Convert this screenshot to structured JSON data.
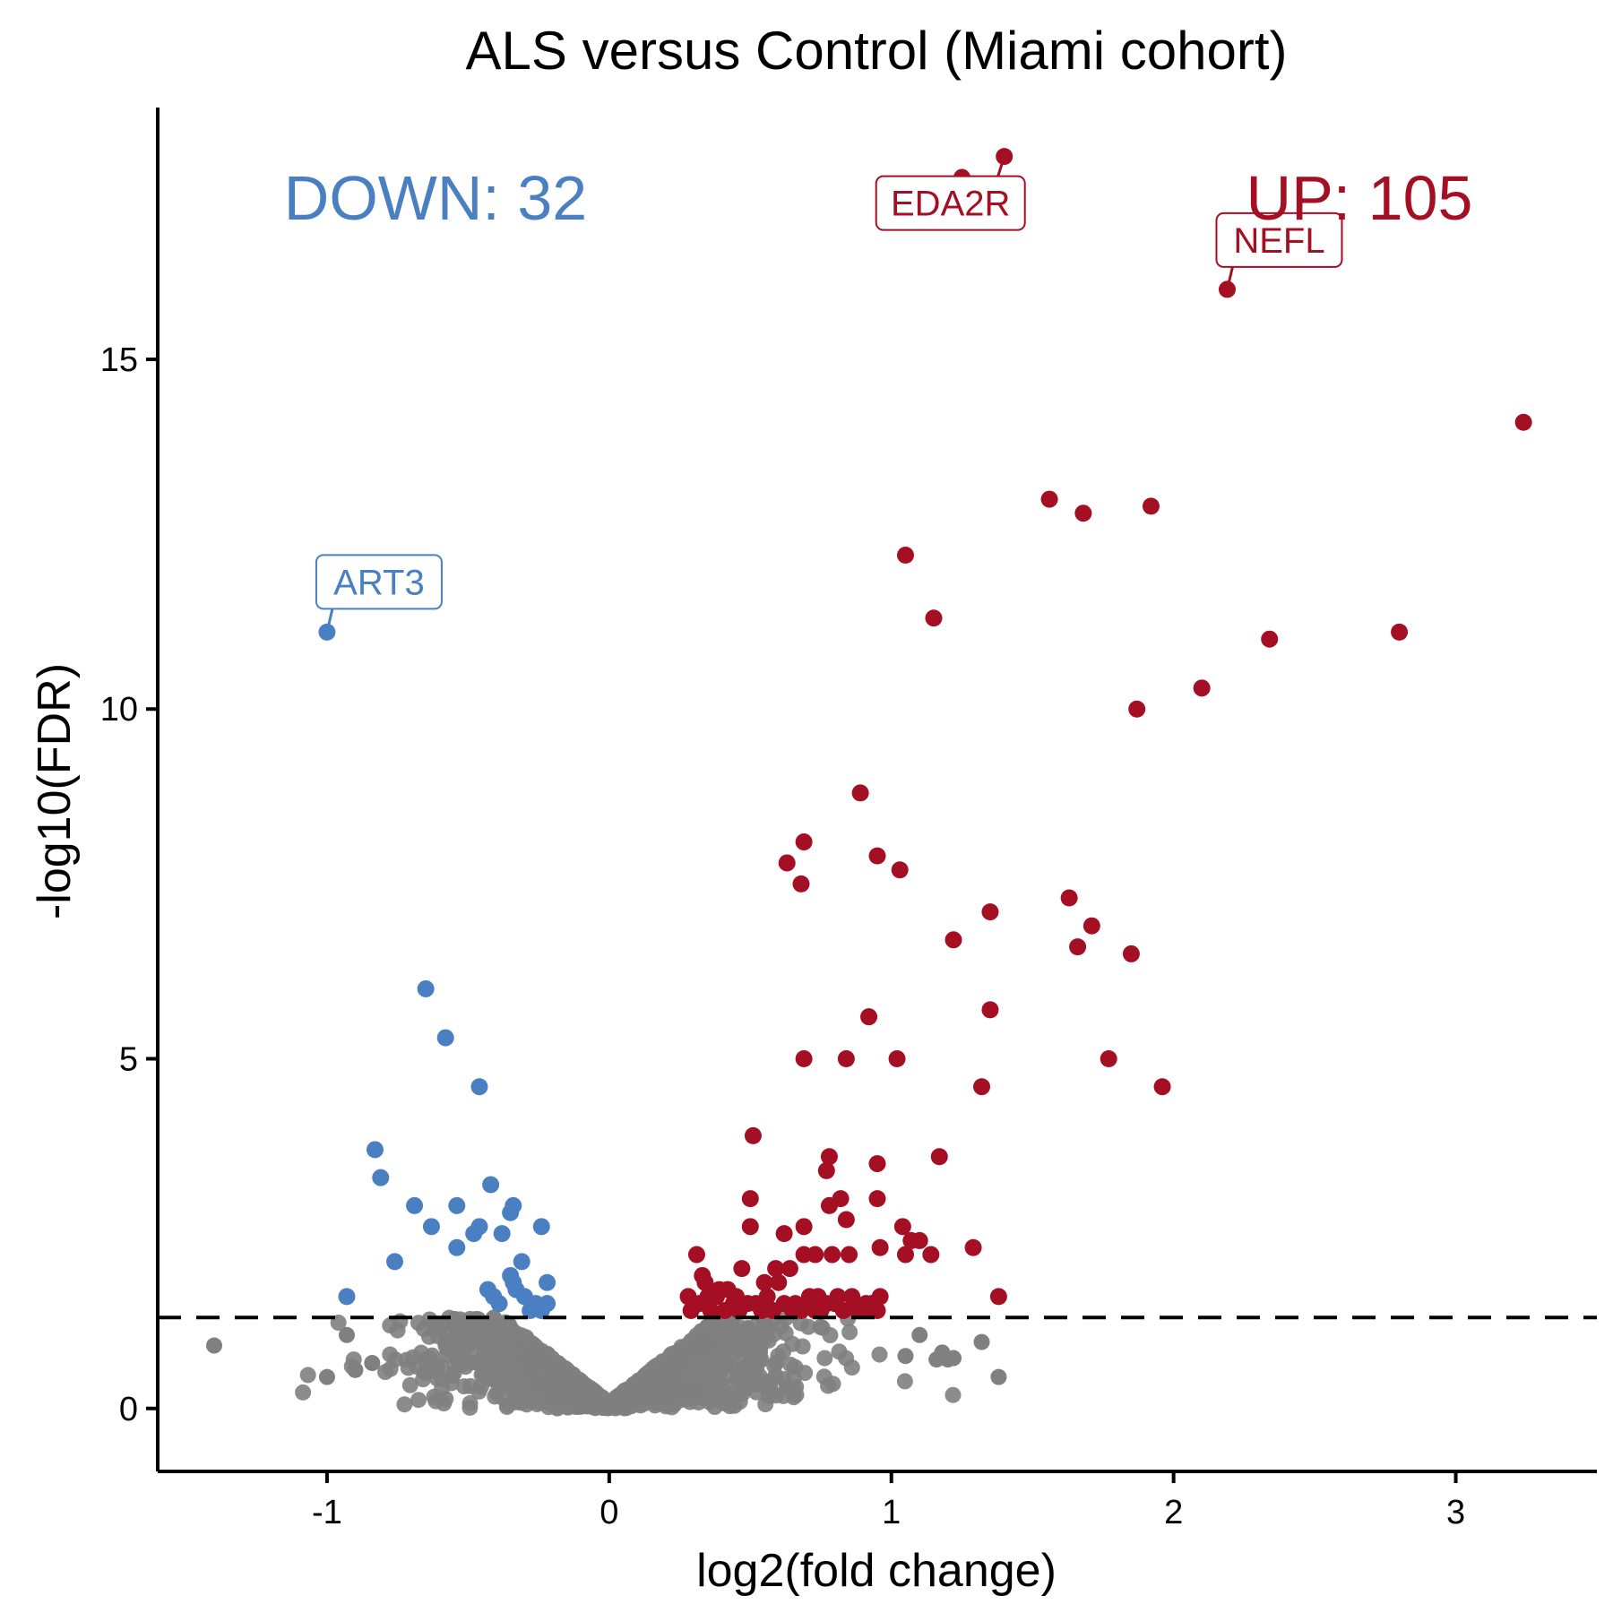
{
  "colors": {
    "up": "#A50F24",
    "down": "#4A80C2",
    "ns": "#808080",
    "axis": "#000000"
  },
  "chart_data": {
    "type": "scatter",
    "title": "ALS versus Control (Miami cohort)",
    "xlabel": "log2(fold change)",
    "ylabel": "-log10(FDR)",
    "xlim": [
      -1.6,
      3.5
    ],
    "ylim": [
      -0.9,
      18.6
    ],
    "x_ticks": [
      -1,
      0,
      1,
      2,
      3
    ],
    "y_ticks": [
      0,
      5,
      10,
      15
    ],
    "threshold_line": {
      "y": 1.3,
      "style": "dashed"
    },
    "counts": {
      "down_label": "DOWN: 32",
      "up_label": "UP: 105"
    },
    "labeled_genes": [
      {
        "gene": "EDA2R",
        "x": 1.4,
        "y": 17.9,
        "group": "up"
      },
      {
        "gene": "NEFL",
        "x": 2.19,
        "y": 16.0,
        "group": "up"
      },
      {
        "gene": "ART3",
        "x": -1.0,
        "y": 11.1,
        "group": "down"
      }
    ],
    "series": [
      {
        "name": "UP",
        "points": [
          [
            1.4,
            17.9
          ],
          [
            1.25,
            17.6
          ],
          [
            2.19,
            16.0
          ],
          [
            3.24,
            14.1
          ],
          [
            1.56,
            13.0
          ],
          [
            1.68,
            12.8
          ],
          [
            1.92,
            12.9
          ],
          [
            1.05,
            12.2
          ],
          [
            1.15,
            11.3
          ],
          [
            2.8,
            11.1
          ],
          [
            2.34,
            11.0
          ],
          [
            2.1,
            10.3
          ],
          [
            1.87,
            10.0
          ],
          [
            0.89,
            8.8
          ],
          [
            0.69,
            8.1
          ],
          [
            0.95,
            7.9
          ],
          [
            0.63,
            7.8
          ],
          [
            1.03,
            7.7
          ],
          [
            0.68,
            7.5
          ],
          [
            1.35,
            7.1
          ],
          [
            1.63,
            7.3
          ],
          [
            1.71,
            6.9
          ],
          [
            1.22,
            6.7
          ],
          [
            1.66,
            6.6
          ],
          [
            1.85,
            6.5
          ],
          [
            0.92,
            5.6
          ],
          [
            1.35,
            5.7
          ],
          [
            0.69,
            5.0
          ],
          [
            0.84,
            5.0
          ],
          [
            1.02,
            5.0
          ],
          [
            1.77,
            5.0
          ],
          [
            1.32,
            4.6
          ],
          [
            1.96,
            4.6
          ],
          [
            0.51,
            3.9
          ],
          [
            0.78,
            3.6
          ],
          [
            0.95,
            3.5
          ],
          [
            1.17,
            3.6
          ],
          [
            0.77,
            3.4
          ],
          [
            0.5,
            3.0
          ],
          [
            0.78,
            2.9
          ],
          [
            0.82,
            3.0
          ],
          [
            0.95,
            3.0
          ],
          [
            0.84,
            2.7
          ],
          [
            0.69,
            2.6
          ],
          [
            0.5,
            2.6
          ],
          [
            0.62,
            2.5
          ],
          [
            1.04,
            2.6
          ],
          [
            1.07,
            2.4
          ],
          [
            1.1,
            2.4
          ],
          [
            0.69,
            2.2
          ],
          [
            0.73,
            2.2
          ],
          [
            0.79,
            2.2
          ],
          [
            0.85,
            2.2
          ],
          [
            0.96,
            2.3
          ],
          [
            1.05,
            2.2
          ],
          [
            1.14,
            2.2
          ],
          [
            1.29,
            2.3
          ],
          [
            0.31,
            2.2
          ],
          [
            0.33,
            1.9
          ],
          [
            0.47,
            2.0
          ],
          [
            0.59,
            2.0
          ],
          [
            0.64,
            2.0
          ],
          [
            0.34,
            1.8
          ],
          [
            0.39,
            1.7
          ],
          [
            0.55,
            1.8
          ],
          [
            0.6,
            1.8
          ],
          [
            0.71,
            1.6
          ],
          [
            0.81,
            1.6
          ],
          [
            0.86,
            1.6
          ],
          [
            0.91,
            1.5
          ],
          [
            0.96,
            1.6
          ],
          [
            1.38,
            1.6
          ],
          [
            0.28,
            1.6
          ],
          [
            0.3,
            1.5
          ],
          [
            0.38,
            1.6
          ],
          [
            0.42,
            1.7
          ],
          [
            0.44,
            1.5
          ],
          [
            0.52,
            1.5
          ],
          [
            0.56,
            1.6
          ],
          [
            0.65,
            1.4
          ],
          [
            0.75,
            1.4
          ],
          [
            0.88,
            1.4
          ],
          [
            0.93,
            1.5
          ],
          [
            0.29,
            1.4
          ],
          [
            0.36,
            1.4
          ],
          [
            0.46,
            1.4
          ],
          [
            0.66,
            1.5
          ],
          [
            0.7,
            1.5
          ],
          [
            0.77,
            1.5
          ],
          [
            0.83,
            1.4
          ],
          [
            0.32,
            1.5
          ],
          [
            0.41,
            1.4
          ],
          [
            0.49,
            1.5
          ],
          [
            0.58,
            1.4
          ],
          [
            0.62,
            1.5
          ],
          [
            0.73,
            1.4
          ],
          [
            0.8,
            1.5
          ],
          [
            0.87,
            1.5
          ],
          [
            0.9,
            1.4
          ],
          [
            0.35,
            1.6
          ],
          [
            0.45,
            1.6
          ],
          [
            0.54,
            1.4
          ],
          [
            0.68,
            1.4
          ],
          [
            0.74,
            1.6
          ],
          [
            0.95,
            1.4
          ]
        ]
      },
      {
        "name": "DOWN",
        "points": [
          [
            -1.0,
            11.1
          ],
          [
            -0.65,
            6.0
          ],
          [
            -0.58,
            5.3
          ],
          [
            -0.46,
            4.6
          ],
          [
            -0.83,
            3.7
          ],
          [
            -0.81,
            3.3
          ],
          [
            -0.42,
            3.2
          ],
          [
            -0.69,
            2.9
          ],
          [
            -0.54,
            2.9
          ],
          [
            -0.34,
            2.9
          ],
          [
            -0.35,
            2.8
          ],
          [
            -0.63,
            2.6
          ],
          [
            -0.48,
            2.5
          ],
          [
            -0.46,
            2.6
          ],
          [
            -0.38,
            2.5
          ],
          [
            -0.24,
            2.6
          ],
          [
            -0.54,
            2.3
          ],
          [
            -0.76,
            2.1
          ],
          [
            -0.31,
            2.1
          ],
          [
            -0.22,
            1.8
          ],
          [
            -0.43,
            1.7
          ],
          [
            -0.33,
            1.7
          ],
          [
            -0.41,
            1.6
          ],
          [
            -0.3,
            1.6
          ],
          [
            -0.93,
            1.6
          ],
          [
            -0.26,
            1.5
          ],
          [
            -0.22,
            1.5
          ],
          [
            -0.34,
            1.8
          ],
          [
            -0.39,
            1.5
          ],
          [
            -0.28,
            1.4
          ],
          [
            -0.24,
            1.4
          ],
          [
            -0.35,
            1.9
          ]
        ]
      }
    ],
    "ns_summary": {
      "name": "Not significant",
      "n_points_drawn": 1400,
      "x_range": [
        -1.4,
        1.4
      ],
      "y_max": 1.3,
      "outliers": [
        [
          -1.4,
          0.9
        ],
        [
          -1.0,
          0.45
        ],
        [
          -0.93,
          1.05
        ],
        [
          -0.9,
          0.55
        ],
        [
          -0.84,
          0.65
        ],
        [
          1.1,
          1.05
        ],
        [
          1.18,
          0.8
        ],
        [
          1.32,
          0.95
        ],
        [
          1.2,
          0.7
        ],
        [
          1.38,
          0.45
        ],
        [
          1.05,
          0.75
        ],
        [
          1.16,
          0.7
        ],
        [
          1.22,
          0.72
        ]
      ]
    }
  }
}
